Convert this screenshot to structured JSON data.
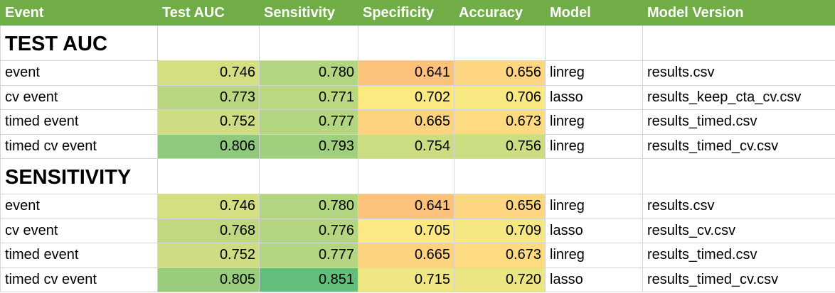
{
  "header": [
    "Event",
    "Test AUC",
    "Sensitivity",
    "Specificity",
    "Accuracy",
    "Model",
    "Model Version"
  ],
  "sections": [
    {
      "title": "TEST AUC",
      "rows": [
        {
          "event": "event",
          "auc": "0.746",
          "sens": "0.780",
          "spec": "0.641",
          "acc": "0.656",
          "model": "linreg",
          "version": "results.csv",
          "colors": {
            "auc": "#d3df80",
            "sens": "#b1d580",
            "spec": "#fcc27c",
            "acc": "#fed581"
          }
        },
        {
          "event": "cv event",
          "auc": "0.773",
          "sens": "0.771",
          "spec": "0.702",
          "acc": "0.706",
          "model": "lasso",
          "version": "results_keep_cta_cv.csv",
          "colors": {
            "auc": "#b9d780",
            "sens": "#bad880",
            "spec": "#fde982",
            "acc": "#f9e983"
          }
        },
        {
          "event": "timed event",
          "auc": "0.752",
          "sens": "0.777",
          "spec": "0.665",
          "acc": "0.673",
          "model": "linreg",
          "version": "results_timed.csv",
          "colors": {
            "auc": "#cedd81",
            "sens": "#b5d680",
            "spec": "#fdd37f",
            "acc": "#fedb81"
          }
        },
        {
          "event": "timed cv event",
          "auc": "0.806",
          "sens": "0.793",
          "spec": "0.754",
          "acc": "0.756",
          "model": "linreg",
          "version": "results_timed_cv.csv",
          "colors": {
            "auc": "#8ec97d",
            "sens": "#a0cf7e",
            "spec": "#cade81",
            "acc": "#cbdf82"
          }
        }
      ]
    },
    {
      "title": "SENSITIVITY",
      "rows": [
        {
          "event": "event",
          "auc": "0.746",
          "sens": "0.780",
          "spec": "0.641",
          "acc": "0.656",
          "model": "linreg",
          "version": "results.csv",
          "colors": {
            "auc": "#d3df80",
            "sens": "#b1d580",
            "spec": "#fcc27c",
            "acc": "#fed581"
          }
        },
        {
          "event": "cv event",
          "auc": "0.768",
          "sens": "0.776",
          "spec": "0.705",
          "acc": "0.709",
          "model": "lasso",
          "version": "results_cv.csv",
          "colors": {
            "auc": "#c0d980",
            "sens": "#b5d680",
            "spec": "#fde983",
            "acc": "#f5e883"
          }
        },
        {
          "event": "timed event",
          "auc": "0.752",
          "sens": "0.777",
          "spec": "0.665",
          "acc": "0.673",
          "model": "linreg",
          "version": "results_timed.csv",
          "colors": {
            "auc": "#cedd81",
            "sens": "#b5d680",
            "spec": "#fdd37f",
            "acc": "#fedb81"
          }
        },
        {
          "event": "timed cv event",
          "auc": "0.805",
          "sens": "0.851",
          "spec": "0.715",
          "acc": "0.720",
          "model": "lasso",
          "version": "results_timed_cv.csv",
          "colors": {
            "auc": "#99cd7e",
            "sens": "#63be7b",
            "spec": "#f0e784",
            "acc": "#ebe583"
          }
        }
      ]
    }
  ]
}
